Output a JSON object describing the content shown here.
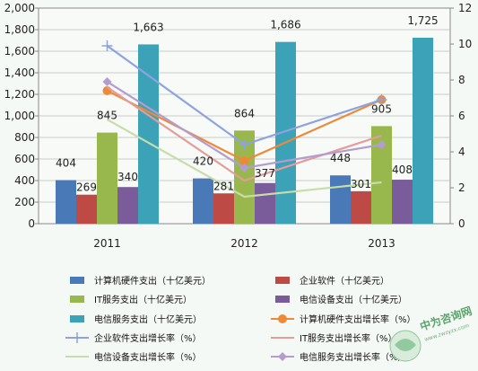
{
  "chart_data": {
    "type": "bar",
    "categories": [
      "2011",
      "2012",
      "2013"
    ],
    "ylim": [
      0,
      2000
    ],
    "yticks": [
      0,
      200,
      400,
      600,
      800,
      1000,
      1200,
      1400,
      1600,
      1800,
      2000
    ],
    "ytick_labels": [
      "0",
      "200",
      "400",
      "600",
      "800",
      "1,000",
      "1,200",
      "1,400",
      "1,600",
      "1,800",
      "2,000"
    ],
    "y2lim": [
      0,
      12
    ],
    "y2ticks": [
      0,
      2,
      4,
      6,
      8,
      10,
      12
    ],
    "y2tick_labels": [
      "0",
      "2",
      "4",
      "6",
      "8",
      "10",
      "12"
    ],
    "grid": true,
    "legend_position": "bottom",
    "bar_series": [
      {
        "name": "计算机硬件支出（十亿美元）",
        "color": "#4a79b8",
        "values": [
          404,
          420,
          448
        ],
        "labels": [
          "404",
          "420",
          "448"
        ]
      },
      {
        "name": "企业软件（十亿美元）",
        "color": "#bd4a45",
        "values": [
          269,
          281,
          301
        ],
        "labels": [
          "269",
          "281",
          "301"
        ]
      },
      {
        "name": "IT服务支出（十亿美元）",
        "color": "#98b84e",
        "values": [
          845,
          864,
          905
        ],
        "labels": [
          "845",
          "864",
          "905"
        ]
      },
      {
        "name": "电信设备支出（十亿美元）",
        "color": "#7a5c9b",
        "values": [
          340,
          377,
          408
        ],
        "labels": [
          "340",
          "377",
          "408"
        ]
      },
      {
        "name": "电信服务支出（十亿美元）",
        "color": "#3ca2b8",
        "values": [
          1663,
          1686,
          1725
        ],
        "labels": [
          "1,663",
          "1,686",
          "1,725"
        ]
      }
    ],
    "line_series": [
      {
        "name": "计算机硬件支出增长率（%）",
        "color": "#ec8a3a",
        "marker": "circle",
        "values": [
          7.4,
          3.5,
          6.9
        ]
      },
      {
        "name": "企业软件支出增长率（%）",
        "color": "#8ea3de",
        "marker": "plus",
        "values": [
          9.9,
          4.4,
          6.9
        ]
      },
      {
        "name": "IT服务支出增长率（%）",
        "color": "#e39c9a",
        "marker": "none",
        "values": [
          7.6,
          2.4,
          4.9
        ]
      },
      {
        "name": "电信设备支出增长率（%）",
        "color": "#c8dcaa",
        "marker": "none",
        "values": [
          5.8,
          1.5,
          2.3
        ]
      },
      {
        "name": "电信服务支出增长率（%）",
        "color": "#b49bd0",
        "marker": "diamond",
        "values": [
          7.9,
          3.1,
          4.4
        ]
      }
    ]
  },
  "watermark": {
    "text": "中为咨询网",
    "sub": "www.zwzyzx.com"
  }
}
